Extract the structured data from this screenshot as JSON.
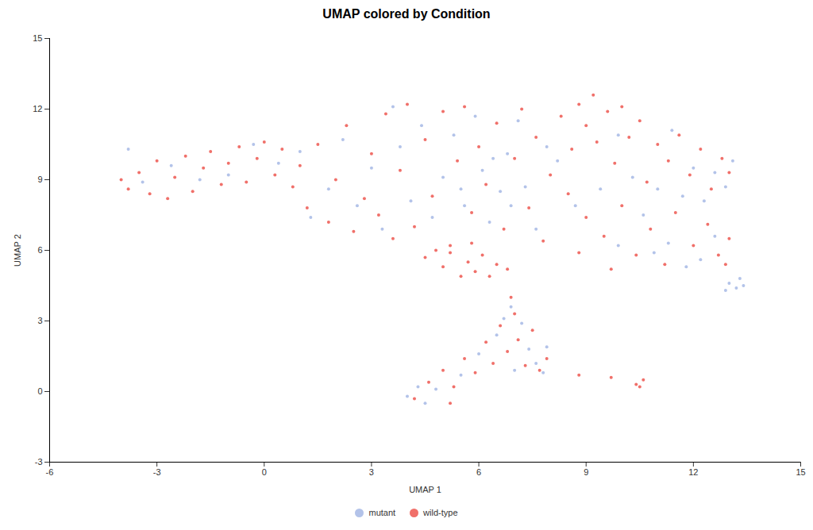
{
  "chart_data": {
    "type": "scatter",
    "title": "UMAP colored by Condition",
    "x_label": "UMAP 1",
    "y_label": "UMAP 2",
    "xlim": [
      -6,
      15
    ],
    "ylim": [
      -3,
      15
    ],
    "xticks": [
      -6,
      -3,
      0,
      3,
      6,
      9,
      12,
      15
    ],
    "yticks": [
      -3,
      0,
      3,
      6,
      9,
      12,
      15
    ],
    "grid": false,
    "legend": "bottom",
    "series": [
      {
        "name": "mutant",
        "color": "#b3c3e9",
        "marker": "circle",
        "x": [
          -3.8,
          -3.4,
          -2.6,
          -1.8,
          -1,
          -0.3,
          0.4,
          1,
          1.3,
          1.8,
          2.2,
          2.6,
          3,
          3.3,
          3.6,
          3.8,
          4.1,
          4.4,
          4.7,
          5,
          5.3,
          5.6,
          5.9,
          6.1,
          6.3,
          6.6,
          6.8,
          7.1,
          7.3,
          7.6,
          7.9,
          6.4,
          5.5,
          6.9,
          8.2,
          8.7,
          9.4,
          9.9,
          10.3,
          10.6,
          11,
          11.4,
          11.7,
          12,
          12.3,
          12.6,
          12.9,
          13.1,
          11.3,
          11.8,
          12.2,
          10.9,
          9.9,
          12.6,
          13,
          13.2,
          13.3,
          12.9,
          13.4,
          4,
          4.3,
          4.5,
          4.8,
          5.5,
          6,
          6.5,
          6.9,
          7.2,
          7.4,
          7.6,
          7.8,
          7,
          6.7,
          7.9
        ],
        "y": [
          10.3,
          8.9,
          9.6,
          9,
          9.2,
          10.5,
          9.7,
          10.2,
          7.4,
          8.6,
          10.7,
          7.9,
          9.5,
          6.9,
          12.1,
          10.4,
          8.1,
          11.3,
          7.4,
          9.1,
          10.9,
          7.9,
          11.7,
          9.4,
          7.2,
          8.5,
          10.1,
          11.5,
          8.7,
          6.9,
          10.4,
          9.9,
          8.6,
          7.9,
          9.8,
          7.9,
          8.6,
          10.9,
          9.1,
          7.5,
          8.6,
          11.1,
          8.3,
          9.5,
          8.1,
          9.3,
          8.7,
          9.8,
          6.3,
          5.3,
          5.6,
          5.9,
          6.2,
          6.6,
          4.6,
          4.4,
          4.8,
          4.3,
          4.5,
          -0.2,
          0.2,
          -0.5,
          0.1,
          0.7,
          1.6,
          2.4,
          3.6,
          2.9,
          1.8,
          1.2,
          0.8,
          0.9,
          3.1,
          1.9
        ]
      },
      {
        "name": "wild-type",
        "color": "#f0706a",
        "marker": "circle",
        "x": [
          -4,
          -3.8,
          -3.5,
          -3.2,
          -3,
          -2.7,
          -2.5,
          -2.2,
          -2,
          -1.7,
          -1.5,
          -1.2,
          -1,
          -0.7,
          -0.5,
          -0.2,
          0,
          0.3,
          0.5,
          0.8,
          1,
          1.2,
          1.5,
          1.8,
          2,
          2.3,
          2.5,
          2.8,
          3,
          3.2,
          3.4,
          3.6,
          3.8,
          4,
          4.2,
          4.5,
          4.7,
          5,
          5.2,
          5.4,
          5.6,
          5.8,
          6,
          6.2,
          6.5,
          6.7,
          7,
          7.2,
          7.4,
          7.6,
          7.8,
          8,
          4.5,
          5,
          5.2,
          5.5,
          5.7,
          5.9,
          6.1,
          6.3,
          6.5,
          5.8,
          4.8,
          6.8,
          8.3,
          8.6,
          8.8,
          9,
          9.2,
          9.3,
          9.6,
          9.8,
          10,
          10.2,
          10.5,
          10.7,
          11,
          11.3,
          11.6,
          11.9,
          12.2,
          12.5,
          12.8,
          13,
          8.5,
          9,
          9.5,
          10,
          10.4,
          10.8,
          11.2,
          11.5,
          12,
          12.4,
          12.7,
          13,
          12.9,
          8.8,
          9.7,
          4.2,
          4.6,
          5,
          5.3,
          5.6,
          5.9,
          6.2,
          6.4,
          6.6,
          6.8,
          7,
          7.1,
          7.3,
          7.5,
          7.7,
          7.9,
          6.9,
          5.2,
          10.4,
          10.6,
          10.5,
          9.7,
          8.8
        ],
        "y": [
          9,
          8.6,
          9.3,
          8.4,
          9.8,
          8.2,
          9.1,
          10,
          8.5,
          9.5,
          10.2,
          8.8,
          9.7,
          10.4,
          8.9,
          9.9,
          10.6,
          9.2,
          10.3,
          8.7,
          9.6,
          7.8,
          10.5,
          7.2,
          9,
          11.3,
          6.8,
          8.2,
          10.1,
          7.5,
          11.8,
          6.5,
          9.4,
          12.2,
          7,
          10.7,
          8.3,
          11.9,
          6.2,
          9.8,
          12.1,
          7.6,
          10.4,
          8.8,
          11.4,
          6.9,
          9.9,
          12,
          7.8,
          10.8,
          6.4,
          9.2,
          5.7,
          5.3,
          5.9,
          4.9,
          5.5,
          5.1,
          5.8,
          4.9,
          5.4,
          6.3,
          6,
          5.2,
          11.7,
          10.3,
          12.2,
          11.3,
          12.6,
          10.6,
          11.9,
          9.7,
          12.1,
          10.8,
          11.5,
          8.9,
          10.5,
          9.8,
          10.9,
          9.2,
          10.3,
          8.6,
          9.9,
          9.3,
          8.4,
          7.4,
          6.6,
          7.9,
          5.8,
          6.9,
          5.4,
          7.6,
          6.2,
          7.1,
          5.8,
          6.5,
          5.4,
          5.9,
          5.2,
          -0.3,
          0.4,
          0.9,
          0.2,
          1.4,
          0.8,
          2.1,
          1.2,
          2.8,
          1.7,
          3.3,
          2.2,
          1.1,
          2.6,
          0.9,
          1.4,
          4,
          -0.5,
          0.3,
          0.5,
          0.2,
          0.6,
          0.7
        ]
      }
    ]
  }
}
